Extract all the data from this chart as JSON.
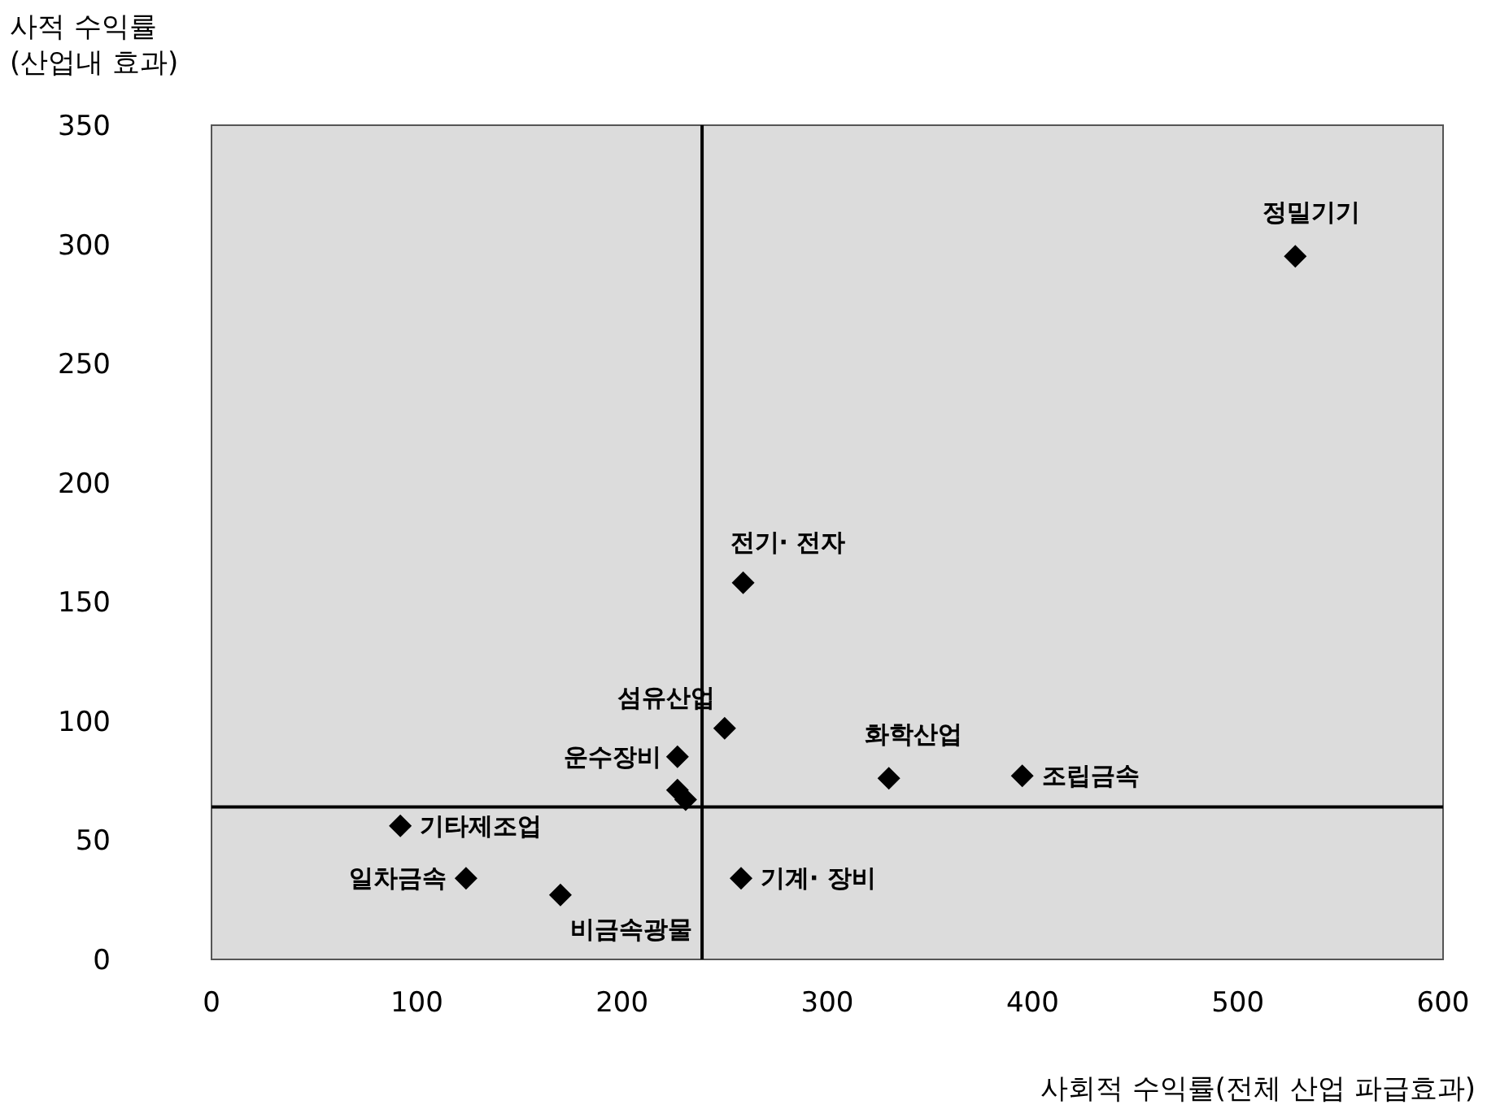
{
  "chart_data": {
    "type": "scatter",
    "ylabel": "사적 수익률\n(산업내 효과)",
    "xlabel": "사회적 수익률(전체 산업 파급효과)",
    "xlim": [
      0,
      600
    ],
    "xticks": [
      0,
      100,
      200,
      300,
      400,
      500,
      600
    ],
    "ylim": [
      0,
      350
    ],
    "yticks": [
      0,
      50,
      100,
      150,
      200,
      250,
      300,
      350
    ],
    "marker": "diamond",
    "grid": false,
    "series": [
      {
        "color": "#000000",
        "x": [
          528,
          259,
          250,
          227,
          227,
          231,
          330,
          395,
          92,
          124,
          170,
          258
        ],
        "values": [
          295,
          158,
          97,
          85,
          71,
          67,
          76,
          77,
          56,
          34,
          27,
          34
        ]
      }
    ],
    "ref_lines": [
      {
        "axis": "x",
        "value": 239,
        "color": "#000000"
      },
      {
        "axis": "y",
        "value": 64,
        "color": "#000000"
      }
    ],
    "annotations": [
      {
        "text": "정밀기기",
        "x": 528,
        "y": 295
      },
      {
        "text": "전기· 전자",
        "x": 259,
        "y": 158
      },
      {
        "text": "섬유산업",
        "x": 250,
        "y": 97
      },
      {
        "text": "운수장비",
        "x": 227,
        "y": 85
      },
      {
        "text": "화학산업",
        "x": 330,
        "y": 76
      },
      {
        "text": "조립금속",
        "x": 395,
        "y": 77
      },
      {
        "text": "기타제조업",
        "x": 92,
        "y": 56
      },
      {
        "text": "일차금속",
        "x": 124,
        "y": 34
      },
      {
        "text": "비금속광물",
        "x": 170,
        "y": 27
      },
      {
        "text": "기계· 장비",
        "x": 258,
        "y": 34
      }
    ]
  }
}
